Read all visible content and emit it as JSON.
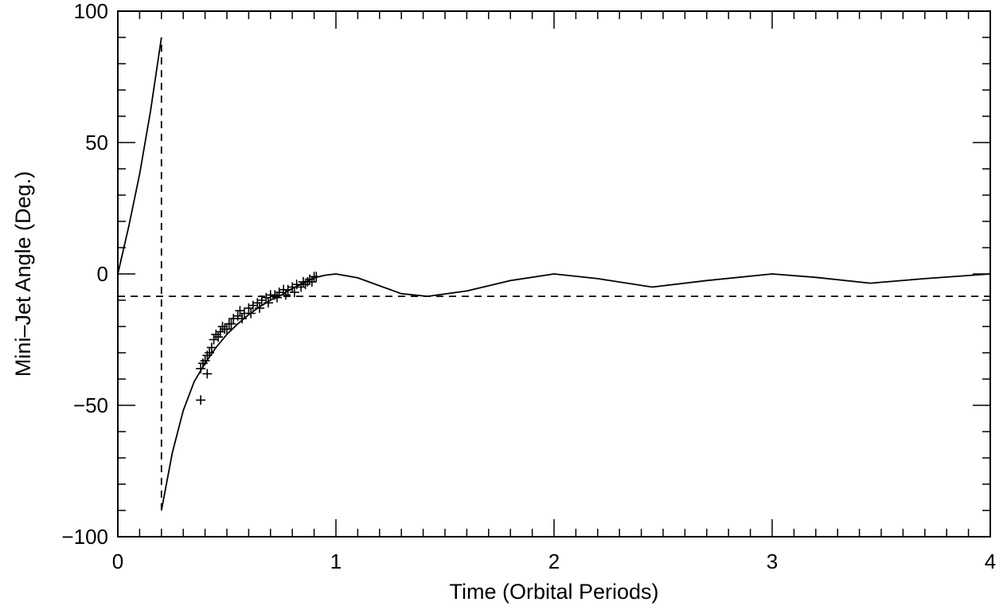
{
  "chart_data": {
    "type": "line",
    "xlabel": "Time (Orbital Periods)",
    "ylabel": "Mini–Jet Angle (Deg.)",
    "xlim": [
      0,
      4
    ],
    "ylim": [
      -100,
      100
    ],
    "x_ticks": [
      0,
      1,
      2,
      3,
      4
    ],
    "y_ticks": [
      -100,
      -50,
      0,
      50,
      100
    ],
    "x_tick_labels": [
      "0",
      "1",
      "2",
      "3",
      "4"
    ],
    "y_tick_labels": [
      "−100",
      "−50",
      "0",
      "50",
      "100"
    ],
    "grid": false,
    "legend": "none",
    "series": [
      {
        "style": "solid",
        "x": [
          0.0,
          0.05,
          0.1,
          0.15,
          0.2
        ],
        "y": [
          0,
          18,
          38,
          62,
          90
        ]
      },
      {
        "style": "solid",
        "x": [
          0.2,
          0.25,
          0.3,
          0.35,
          0.4,
          0.45,
          0.5,
          0.55,
          0.6,
          0.65,
          0.7,
          0.75,
          0.8,
          0.85,
          0.9,
          0.95,
          1.0,
          1.1,
          1.2,
          1.3,
          1.42,
          1.6,
          1.8,
          2.0,
          2.2,
          2.45,
          2.7,
          3.0,
          3.2,
          3.45,
          3.7,
          4.0
        ],
        "y": [
          -90,
          -68,
          -52,
          -41,
          -34,
          -28,
          -23,
          -19,
          -15.5,
          -12.5,
          -10,
          -8,
          -5.5,
          -3.5,
          -1.5,
          -0.5,
          0,
          -1.5,
          -4.5,
          -7.5,
          -8.5,
          -6.5,
          -2.5,
          0,
          -1.8,
          -5,
          -2.5,
          0,
          -1.3,
          -3.5,
          -1.8,
          0
        ]
      },
      {
        "style": "dashed-vertical",
        "x": [
          0.2,
          0.2
        ],
        "y": [
          -90,
          90
        ]
      },
      {
        "style": "dashed-horizontal",
        "x": [
          0,
          4
        ],
        "y": [
          -8.5,
          -8.5
        ]
      },
      {
        "style": "plus-markers",
        "x": [
          0.38,
          0.38,
          0.39,
          0.4,
          0.41,
          0.41,
          0.42,
          0.43,
          0.44,
          0.45,
          0.46,
          0.47,
          0.48,
          0.49,
          0.5,
          0.51,
          0.52,
          0.53,
          0.55,
          0.56,
          0.57,
          0.58,
          0.6,
          0.61,
          0.62,
          0.64,
          0.65,
          0.66,
          0.68,
          0.69,
          0.7,
          0.72,
          0.73,
          0.74,
          0.76,
          0.77,
          0.78,
          0.8,
          0.81,
          0.82,
          0.84,
          0.85,
          0.86,
          0.87,
          0.88,
          0.89,
          0.9,
          0.91
        ],
        "y": [
          -48,
          -36,
          -34,
          -33,
          -31,
          -38,
          -30,
          -28,
          -25,
          -23,
          -24,
          -22,
          -20,
          -21,
          -21,
          -19,
          -19,
          -17,
          -16,
          -14,
          -17,
          -15,
          -13,
          -15,
          -12,
          -11,
          -13,
          -10,
          -9,
          -11,
          -8,
          -8,
          -9,
          -7,
          -6,
          -8,
          -6,
          -5,
          -7,
          -4,
          -5,
          -3,
          -4,
          -3,
          -2,
          -3,
          -1,
          -1
        ]
      }
    ]
  }
}
